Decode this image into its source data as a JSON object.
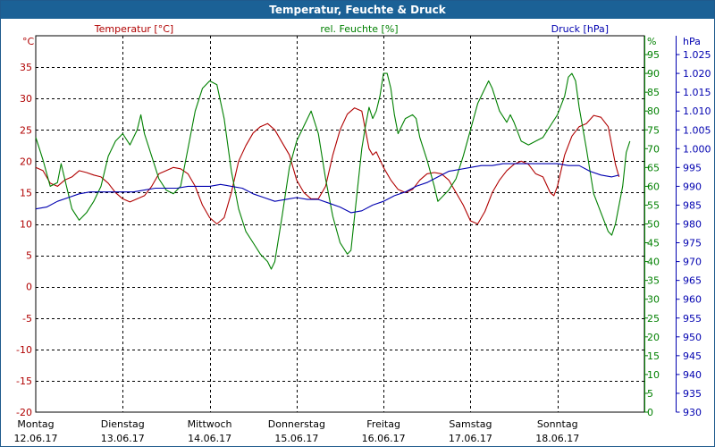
{
  "window": {
    "title": "Temperatur, Feuchte & Druck"
  },
  "chart_data": {
    "type": "line",
    "title": "Temperatur, Feuchte & Druck",
    "grid": true,
    "x": {
      "unit": "hours since Monday 12.06.17 00:00",
      "range": [
        0,
        168
      ],
      "ticks": [
        {
          "day": "Montag",
          "date": "12.06.17"
        },
        {
          "day": "Dienstag",
          "date": "13.06.17"
        },
        {
          "day": "Mittwoch",
          "date": "14.06.17"
        },
        {
          "day": "Donnerstag",
          "date": "15.06.17"
        },
        {
          "day": "Freitag",
          "date": "16.06.17"
        },
        {
          "day": "Samstag",
          "date": "17.06.17"
        },
        {
          "day": "Sonntag",
          "date": "18.06.17"
        }
      ]
    },
    "axes": {
      "temperature": {
        "unit": "°C",
        "ylim": [
          -20,
          40
        ],
        "ticks": [
          "-20",
          "-15",
          "-10",
          "-5",
          "0",
          "5",
          "10",
          "15",
          "20",
          "25",
          "30",
          "35"
        ]
      },
      "humidity": {
        "unit": "%",
        "ylim": [
          0,
          100
        ],
        "ticks": [
          "0",
          "5",
          "10",
          "15",
          "20",
          "25",
          "30",
          "35",
          "40",
          "45",
          "50",
          "55",
          "60",
          "65",
          "70",
          "75",
          "80",
          "85",
          "90",
          "95"
        ]
      },
      "pressure": {
        "unit": "hPa",
        "ylim": [
          930,
          1030
        ],
        "ticks": [
          "930",
          "935",
          "940",
          "945",
          "950",
          "955",
          "960",
          "965",
          "970",
          "975",
          "980",
          "985",
          "990",
          "995",
          "1.000",
          "1.005",
          "1.010",
          "1.015",
          "1.020",
          "1.025"
        ]
      }
    },
    "series": [
      {
        "name": "Temperatur [°C]",
        "axis": "temperature",
        "color": "#b00000",
        "points": [
          [
            0,
            19
          ],
          [
            2,
            18.5
          ],
          [
            4,
            16.5
          ],
          [
            6,
            16
          ],
          [
            8,
            17
          ],
          [
            10,
            17.5
          ],
          [
            12,
            18.5
          ],
          [
            14,
            18.2
          ],
          [
            16,
            17.8
          ],
          [
            18,
            17.5
          ],
          [
            20,
            16.5
          ],
          [
            22,
            15
          ],
          [
            24,
            14
          ],
          [
            26,
            13.5
          ],
          [
            28,
            14
          ],
          [
            30,
            14.5
          ],
          [
            32,
            16
          ],
          [
            34,
            18
          ],
          [
            36,
            18.5
          ],
          [
            38,
            19
          ],
          [
            40,
            18.8
          ],
          [
            42,
            18
          ],
          [
            44,
            16
          ],
          [
            46,
            13
          ],
          [
            48,
            11
          ],
          [
            50,
            10
          ],
          [
            52,
            11
          ],
          [
            54,
            15
          ],
          [
            56,
            20
          ],
          [
            58,
            22.5
          ],
          [
            60,
            24.5
          ],
          [
            62,
            25.5
          ],
          [
            64,
            26
          ],
          [
            66,
            25
          ],
          [
            68,
            23
          ],
          [
            70,
            21
          ],
          [
            72,
            17
          ],
          [
            74,
            15
          ],
          [
            76,
            14
          ],
          [
            78,
            14
          ],
          [
            80,
            16
          ],
          [
            82,
            21
          ],
          [
            84,
            25
          ],
          [
            86,
            27.5
          ],
          [
            88,
            28.5
          ],
          [
            90,
            28
          ],
          [
            92,
            22
          ],
          [
            93,
            21
          ],
          [
            94,
            21.5
          ],
          [
            96,
            19
          ],
          [
            98,
            17
          ],
          [
            100,
            15.5
          ],
          [
            102,
            15
          ],
          [
            104,
            15.5
          ],
          [
            106,
            17
          ],
          [
            108,
            18
          ],
          [
            110,
            18.2
          ],
          [
            112,
            18
          ],
          [
            114,
            17
          ],
          [
            116,
            15
          ],
          [
            118,
            13
          ],
          [
            120,
            10.5
          ],
          [
            122,
            10
          ],
          [
            124,
            12
          ],
          [
            126,
            15
          ],
          [
            128,
            17
          ],
          [
            130,
            18.5
          ],
          [
            132,
            19.5
          ],
          [
            134,
            20
          ],
          [
            136,
            19.5
          ],
          [
            138,
            18
          ],
          [
            140,
            17.5
          ],
          [
            142,
            15
          ],
          [
            143,
            14.5
          ],
          [
            144,
            16
          ],
          [
            146,
            21
          ],
          [
            148,
            24
          ],
          [
            150,
            25.5
          ],
          [
            152,
            26
          ],
          [
            154,
            27.3
          ],
          [
            156,
            27
          ],
          [
            158,
            25.5
          ],
          [
            160,
            19.5
          ],
          [
            161,
            17.5
          ]
        ]
      },
      {
        "name": "rel. Feuchte [%]",
        "axis": "humidity",
        "color": "#008000",
        "points": [
          [
            0,
            73
          ],
          [
            1,
            70
          ],
          [
            2,
            67
          ],
          [
            4,
            60
          ],
          [
            6,
            61
          ],
          [
            7,
            66
          ],
          [
            8,
            62
          ],
          [
            10,
            54
          ],
          [
            12,
            51
          ],
          [
            14,
            53
          ],
          [
            16,
            56
          ],
          [
            18,
            60
          ],
          [
            20,
            68
          ],
          [
            22,
            72
          ],
          [
            24,
            74
          ],
          [
            26,
            71
          ],
          [
            28,
            75
          ],
          [
            29,
            79
          ],
          [
            30,
            74
          ],
          [
            32,
            68
          ],
          [
            34,
            62
          ],
          [
            36,
            59
          ],
          [
            38,
            58
          ],
          [
            40,
            60
          ],
          [
            42,
            70
          ],
          [
            44,
            80
          ],
          [
            46,
            86
          ],
          [
            48,
            88
          ],
          [
            50,
            87
          ],
          [
            52,
            78
          ],
          [
            54,
            64
          ],
          [
            56,
            54
          ],
          [
            58,
            48
          ],
          [
            60,
            45
          ],
          [
            62,
            42
          ],
          [
            64,
            40
          ],
          [
            65,
            38
          ],
          [
            66,
            40
          ],
          [
            68,
            52
          ],
          [
            70,
            65
          ],
          [
            72,
            72
          ],
          [
            74,
            76
          ],
          [
            76,
            80
          ],
          [
            78,
            74
          ],
          [
            80,
            62
          ],
          [
            82,
            52
          ],
          [
            84,
            45
          ],
          [
            86,
            42
          ],
          [
            87,
            43
          ],
          [
            88,
            52
          ],
          [
            90,
            70
          ],
          [
            91,
            76
          ],
          [
            92,
            81
          ],
          [
            93,
            78
          ],
          [
            94,
            80
          ],
          [
            95,
            84
          ],
          [
            96,
            90
          ],
          [
            97,
            90
          ],
          [
            98,
            86
          ],
          [
            99,
            79
          ],
          [
            100,
            74
          ],
          [
            101,
            76
          ],
          [
            102,
            78
          ],
          [
            104,
            79
          ],
          [
            105,
            78
          ],
          [
            106,
            73
          ],
          [
            108,
            67
          ],
          [
            110,
            60
          ],
          [
            111,
            56
          ],
          [
            112,
            57
          ],
          [
            114,
            59
          ],
          [
            116,
            62
          ],
          [
            118,
            68
          ],
          [
            120,
            75
          ],
          [
            122,
            82
          ],
          [
            124,
            86
          ],
          [
            125,
            88
          ],
          [
            126,
            86
          ],
          [
            128,
            80
          ],
          [
            130,
            77
          ],
          [
            131,
            79
          ],
          [
            132,
            77
          ],
          [
            134,
            72
          ],
          [
            136,
            71
          ],
          [
            138,
            72
          ],
          [
            140,
            73
          ],
          [
            142,
            76
          ],
          [
            144,
            79
          ],
          [
            146,
            84
          ],
          [
            147,
            89
          ],
          [
            148,
            90
          ],
          [
            149,
            88
          ],
          [
            150,
            81
          ],
          [
            152,
            70
          ],
          [
            154,
            58
          ],
          [
            156,
            53
          ],
          [
            158,
            48
          ],
          [
            159,
            47
          ],
          [
            160,
            50
          ],
          [
            162,
            60
          ],
          [
            163,
            69
          ],
          [
            164,
            72
          ]
        ]
      },
      {
        "name": "Druck [hPa]",
        "axis": "pressure",
        "color": "#0000b0",
        "points": [
          [
            0,
            984
          ],
          [
            3,
            984.5
          ],
          [
            6,
            986
          ],
          [
            9,
            987
          ],
          [
            12,
            988
          ],
          [
            15,
            988.5
          ],
          [
            18,
            988.5
          ],
          [
            21,
            988.5
          ],
          [
            24,
            988.5
          ],
          [
            27,
            988.5
          ],
          [
            30,
            989
          ],
          [
            33,
            989.5
          ],
          [
            36,
            989.5
          ],
          [
            39,
            989.5
          ],
          [
            42,
            990
          ],
          [
            45,
            990
          ],
          [
            48,
            990
          ],
          [
            51,
            990.5
          ],
          [
            54,
            990
          ],
          [
            57,
            989.5
          ],
          [
            60,
            988
          ],
          [
            63,
            987
          ],
          [
            66,
            986
          ],
          [
            69,
            986.5
          ],
          [
            72,
            987
          ],
          [
            75,
            986.5
          ],
          [
            78,
            986.5
          ],
          [
            81,
            985.5
          ],
          [
            84,
            984.5
          ],
          [
            87,
            983
          ],
          [
            90,
            983.5
          ],
          [
            93,
            985
          ],
          [
            96,
            986
          ],
          [
            99,
            987.5
          ],
          [
            102,
            988.5
          ],
          [
            105,
            990
          ],
          [
            108,
            991
          ],
          [
            111,
            992.5
          ],
          [
            114,
            994
          ],
          [
            117,
            994.5
          ],
          [
            120,
            995
          ],
          [
            123,
            995.5
          ],
          [
            126,
            995.5
          ],
          [
            129,
            996
          ],
          [
            132,
            996
          ],
          [
            135,
            996
          ],
          [
            138,
            996
          ],
          [
            141,
            996
          ],
          [
            144,
            996
          ],
          [
            147,
            995.5
          ],
          [
            150,
            995.5
          ],
          [
            153,
            994
          ],
          [
            156,
            993
          ],
          [
            159,
            992.5
          ],
          [
            161,
            993
          ]
        ]
      }
    ],
    "legend": [
      "Temperatur [°C]",
      "rel. Feuchte [%]",
      "Druck [hPa]"
    ]
  }
}
